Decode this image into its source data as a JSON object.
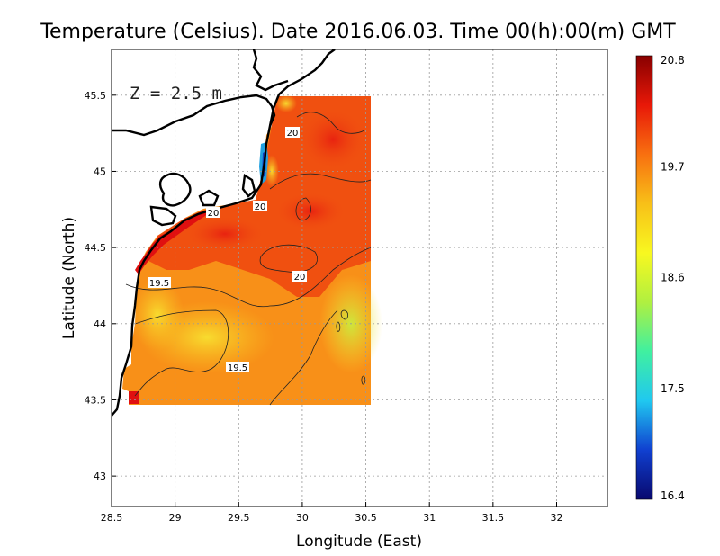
{
  "title": "Temperature (Celsius). Date 2016.06.03. Time 00(h):00(m)  GMT",
  "depth_label": "Z = 2.5 m",
  "x_axis": {
    "label": "Longitude (East)",
    "ticks": [
      "28.5",
      "29",
      "29.5",
      "30",
      "30.5",
      "31",
      "31.5",
      "32"
    ]
  },
  "y_axis": {
    "label": "Latitude (North)",
    "ticks": [
      "43",
      "43.5",
      "44",
      "44.5",
      "45",
      "45.5"
    ]
  },
  "colorbar": {
    "ticks": [
      "20.8",
      "19.7",
      "18.6",
      "17.5",
      "16.4"
    ],
    "min": 16.4,
    "max": 20.8,
    "colors": [
      "#08086e",
      "#1040d0",
      "#20c8f0",
      "#40f0a0",
      "#b0f040",
      "#f8f820",
      "#f8c018",
      "#f87010",
      "#e81808",
      "#880000"
    ]
  },
  "contour_labels": [
    "20",
    "20",
    "20",
    "20",
    "19.5",
    "19.5"
  ],
  "chart_data": {
    "type": "heatmap",
    "title": "Temperature (Celsius). Date 2016.06.03. Time 00(h):00(m)  GMT",
    "xlabel": "Longitude (East)",
    "ylabel": "Latitude (North)",
    "xlim": [
      28.5,
      32.4
    ],
    "ylim": [
      42.8,
      45.8
    ],
    "data_extent_lon": [
      28.6,
      30.55
    ],
    "data_extent_lat": [
      43.5,
      45.5
    ],
    "value_range": [
      16.4,
      20.8
    ],
    "contour_levels": [
      19.5,
      20
    ],
    "grid": true,
    "colorbar_position": "right"
  }
}
